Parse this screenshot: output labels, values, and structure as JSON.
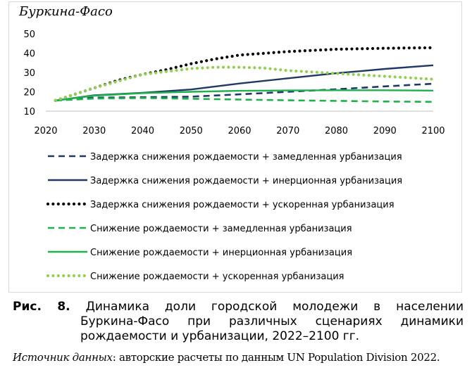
{
  "chart_data": {
    "type": "line",
    "title": "Буркина-Фасо",
    "xlim": [
      2020,
      2100
    ],
    "ylim": [
      10,
      50
    ],
    "xticks": [
      2020,
      2030,
      2040,
      2050,
      2060,
      2070,
      2080,
      2090,
      2100
    ],
    "yticks": [
      10,
      20,
      30,
      40,
      50
    ],
    "grid": false,
    "legend_position": "bottom",
    "series": [
      {
        "name": "Задержка снижения рождаемости + замедленная урбанизация",
        "color": "#1f3864",
        "style": "dashed",
        "x": [
          2022,
          2030,
          2040,
          2050,
          2060,
          2070,
          2080,
          2090,
          2100
        ],
        "y": [
          15.5,
          17.0,
          17.2,
          17.5,
          18.7,
          20.0,
          21.3,
          22.8,
          24.2
        ]
      },
      {
        "name": "Задержка снижения рождаемости + инерционная урбанизация",
        "color": "#1f3864",
        "style": "solid",
        "x": [
          2022,
          2030,
          2040,
          2050,
          2060,
          2070,
          2080,
          2090,
          2100
        ],
        "y": [
          15.5,
          18.2,
          19.5,
          21.2,
          24.3,
          27.0,
          29.6,
          31.8,
          33.7
        ]
      },
      {
        "name": "Задержка снижения рождаемости + ускоренная урбанизация",
        "color": "#000000",
        "style": "dotted",
        "x": [
          2022,
          2030,
          2035,
          2040,
          2045,
          2050,
          2055,
          2060,
          2070,
          2080,
          2090,
          2100
        ],
        "y": [
          15.5,
          22.0,
          26.0,
          29.0,
          31.5,
          34.5,
          37.0,
          39.0,
          40.8,
          42.0,
          42.5,
          42.8
        ]
      },
      {
        "name": "Снижение рождаемости + замедленная урбанизация",
        "color": "#1db24b",
        "style": "dashed",
        "x": [
          2022,
          2030,
          2040,
          2050,
          2060,
          2070,
          2080,
          2090,
          2100
        ],
        "y": [
          15.5,
          16.5,
          16.8,
          16.4,
          16.0,
          15.6,
          15.3,
          15.0,
          14.8
        ]
      },
      {
        "name": "Снижение рождаемости + инерционная урбанизация",
        "color": "#1db24b",
        "style": "solid",
        "x": [
          2022,
          2030,
          2040,
          2050,
          2060,
          2070,
          2080,
          2090,
          2100
        ],
        "y": [
          15.5,
          18.0,
          19.3,
          20.0,
          20.5,
          20.7,
          20.8,
          20.8,
          20.6
        ]
      },
      {
        "name": "Снижение рождаемости + ускоренная урбанизация",
        "color": "#92d050",
        "style": "dotted",
        "x": [
          2022,
          2030,
          2035,
          2040,
          2045,
          2050,
          2055,
          2060,
          2065,
          2070,
          2080,
          2090,
          2100
        ],
        "y": [
          15.5,
          22.0,
          25.5,
          29.0,
          30.5,
          32.0,
          32.7,
          32.7,
          32.3,
          31.0,
          29.5,
          28.0,
          26.5
        ]
      }
    ]
  },
  "caption": {
    "label": "Рис. 8.",
    "line1": "Динамика доли городской молодежи в населении",
    "line2": "Буркина-Фасо при различных сценариях динамики",
    "line3": "рождаемости и урбанизации, 2022–2100 гг."
  },
  "source": {
    "label": "Источник данных",
    "text": ": авторские расчеты по данным UN Population Division 2022."
  }
}
